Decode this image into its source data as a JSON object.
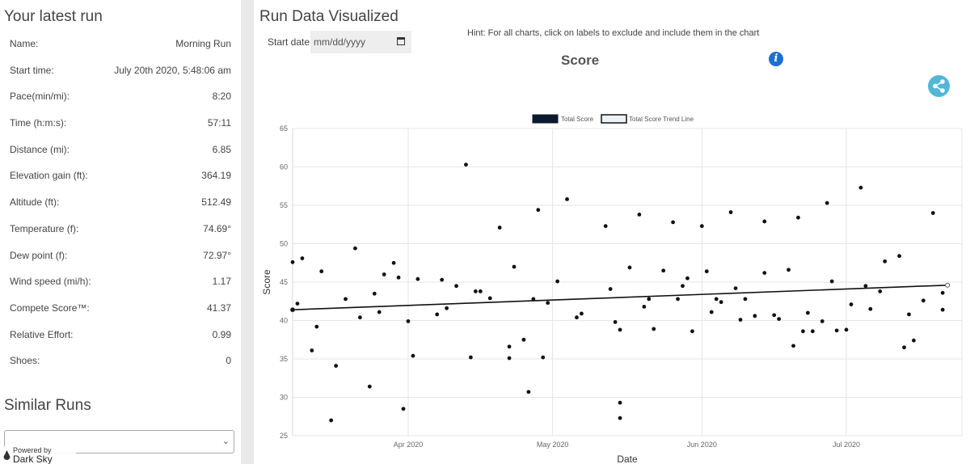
{
  "left": {
    "latest_title": "Your latest run",
    "rows": [
      {
        "label": "Name:",
        "value": "Morning Run"
      },
      {
        "label": "Start time:",
        "value": "July 20th 2020, 5:48:06 am"
      },
      {
        "label": "Pace(min/mi):",
        "value": "8:20"
      },
      {
        "label": "Time (h:m:s):",
        "value": "57:11"
      },
      {
        "label": "Distance (mi):",
        "value": "6.85"
      },
      {
        "label": "Elevation gain (ft):",
        "value": "364.19"
      },
      {
        "label": "Altitude (ft):",
        "value": "512.49"
      },
      {
        "label": "Temperature (f):",
        "value": "74.69°"
      },
      {
        "label": "Dew point (f):",
        "value": "72.97°"
      },
      {
        "label": "Wind speed (mi/h):",
        "value": "1.17"
      },
      {
        "label": "Compete Score™:",
        "value": "41.37"
      },
      {
        "label": "Relative Effort:",
        "value": "0.99"
      },
      {
        "label": "Shoes:",
        "value": "0"
      }
    ],
    "similar_title": "Similar Runs",
    "similar_select_value": "",
    "powered_by_line1": "Powered by",
    "powered_by_line2": "Dark Sky"
  },
  "right": {
    "title": "Run Data Visualized",
    "start_date_label": "Start date",
    "start_date_placeholder": "mm/dd/yyyy",
    "hint": "Hint: For all charts, click on labels to exclude and include them in the chart",
    "info_glyph": "i"
  },
  "icons": {
    "calendar": "calendar-icon",
    "info": "info-icon",
    "share": "share-icon",
    "chevron": "chevron-down-icon",
    "darksky": "darksky-logo-icon"
  },
  "colors": {
    "point": "#111111",
    "trend": "#111111",
    "info": "#1e6fd0",
    "share": "#52b7d6",
    "divider": "#e9e9e9"
  },
  "chart_data": {
    "type": "scatter",
    "title": "Score",
    "xlabel": "Date",
    "ylabel": "Score",
    "ylim": [
      25,
      65
    ],
    "yticks": [
      25,
      30,
      35,
      40,
      45,
      50,
      55,
      60,
      65
    ],
    "xlim": [
      "2020-03-08",
      "2020-07-25"
    ],
    "xticks": [
      {
        "date": "2020-04-01",
        "label": "Apr 2020"
      },
      {
        "date": "2020-05-01",
        "label": "May 2020"
      },
      {
        "date": "2020-06-01",
        "label": "Jun 2020"
      },
      {
        "date": "2020-07-01",
        "label": "Jul 2020"
      }
    ],
    "grid": true,
    "legend": {
      "position": "top",
      "entries": [
        "Total Score",
        "Total Score Trend Line"
      ]
    },
    "series": [
      {
        "name": "Total Score",
        "points": [
          [
            "2020-03-08",
            47.6
          ],
          [
            "2020-03-08",
            41.4
          ],
          [
            "2020-03-09",
            42.2
          ],
          [
            "2020-03-10",
            48.1
          ],
          [
            "2020-03-12",
            36.1
          ],
          [
            "2020-03-13",
            39.2
          ],
          [
            "2020-03-14",
            46.4
          ],
          [
            "2020-03-16",
            27.0
          ],
          [
            "2020-03-17",
            34.1
          ],
          [
            "2020-03-19",
            42.8
          ],
          [
            "2020-03-21",
            49.4
          ],
          [
            "2020-03-22",
            40.4
          ],
          [
            "2020-03-24",
            31.4
          ],
          [
            "2020-03-25",
            43.5
          ],
          [
            "2020-03-26",
            41.1
          ],
          [
            "2020-03-27",
            46.0
          ],
          [
            "2020-03-29",
            47.5
          ],
          [
            "2020-03-30",
            45.6
          ],
          [
            "2020-03-31",
            28.5
          ],
          [
            "2020-04-01",
            39.9
          ],
          [
            "2020-04-02",
            35.4
          ],
          [
            "2020-04-03",
            45.4
          ],
          [
            "2020-04-07",
            40.8
          ],
          [
            "2020-04-08",
            45.3
          ],
          [
            "2020-04-09",
            41.6
          ],
          [
            "2020-04-11",
            44.5
          ],
          [
            "2020-04-13",
            60.3
          ],
          [
            "2020-04-14",
            35.2
          ],
          [
            "2020-04-15",
            43.8
          ],
          [
            "2020-04-16",
            43.8
          ],
          [
            "2020-04-18",
            42.9
          ],
          [
            "2020-04-20",
            52.1
          ],
          [
            "2020-04-22",
            36.6
          ],
          [
            "2020-04-22",
            35.1
          ],
          [
            "2020-04-23",
            47.0
          ],
          [
            "2020-04-25",
            37.5
          ],
          [
            "2020-04-26",
            30.7
          ],
          [
            "2020-04-27",
            42.8
          ],
          [
            "2020-04-28",
            54.4
          ],
          [
            "2020-04-29",
            35.2
          ],
          [
            "2020-04-30",
            42.3
          ],
          [
            "2020-05-02",
            45.1
          ],
          [
            "2020-05-04",
            55.8
          ],
          [
            "2020-05-06",
            40.4
          ],
          [
            "2020-05-07",
            40.9
          ],
          [
            "2020-05-12",
            52.3
          ],
          [
            "2020-05-13",
            44.1
          ],
          [
            "2020-05-14",
            39.8
          ],
          [
            "2020-05-15",
            38.8
          ],
          [
            "2020-05-15",
            29.3
          ],
          [
            "2020-05-15",
            27.3
          ],
          [
            "2020-05-17",
            46.9
          ],
          [
            "2020-05-19",
            53.8
          ],
          [
            "2020-05-20",
            41.8
          ],
          [
            "2020-05-21",
            42.8
          ],
          [
            "2020-05-22",
            38.9
          ],
          [
            "2020-05-24",
            46.5
          ],
          [
            "2020-05-26",
            52.8
          ],
          [
            "2020-05-27",
            42.8
          ],
          [
            "2020-05-28",
            44.5
          ],
          [
            "2020-05-29",
            45.5
          ],
          [
            "2020-05-30",
            38.6
          ],
          [
            "2020-06-01",
            52.3
          ],
          [
            "2020-06-02",
            46.4
          ],
          [
            "2020-06-03",
            41.1
          ],
          [
            "2020-06-04",
            42.8
          ],
          [
            "2020-06-05",
            42.4
          ],
          [
            "2020-06-07",
            54.1
          ],
          [
            "2020-06-08",
            44.2
          ],
          [
            "2020-06-09",
            40.1
          ],
          [
            "2020-06-10",
            42.8
          ],
          [
            "2020-06-12",
            40.6
          ],
          [
            "2020-06-14",
            52.9
          ],
          [
            "2020-06-14",
            46.2
          ],
          [
            "2020-06-16",
            40.7
          ],
          [
            "2020-06-17",
            40.2
          ],
          [
            "2020-06-19",
            46.6
          ],
          [
            "2020-06-20",
            36.7
          ],
          [
            "2020-06-21",
            53.4
          ],
          [
            "2020-06-22",
            38.6
          ],
          [
            "2020-06-23",
            41.0
          ],
          [
            "2020-06-24",
            38.6
          ],
          [
            "2020-06-26",
            39.9
          ],
          [
            "2020-06-27",
            55.3
          ],
          [
            "2020-06-28",
            45.1
          ],
          [
            "2020-06-29",
            38.7
          ],
          [
            "2020-07-01",
            38.8
          ],
          [
            "2020-07-02",
            42.1
          ],
          [
            "2020-07-04",
            57.3
          ],
          [
            "2020-07-05",
            44.5
          ],
          [
            "2020-07-06",
            41.5
          ],
          [
            "2020-07-08",
            43.8
          ],
          [
            "2020-07-09",
            47.7
          ],
          [
            "2020-07-12",
            48.4
          ],
          [
            "2020-07-13",
            36.5
          ],
          [
            "2020-07-14",
            40.8
          ],
          [
            "2020-07-15",
            37.4
          ],
          [
            "2020-07-17",
            42.6
          ],
          [
            "2020-07-19",
            54.0
          ],
          [
            "2020-07-21",
            43.6
          ],
          [
            "2020-07-21",
            41.4
          ]
        ]
      },
      {
        "name": "Total Score Trend Line",
        "points": [
          [
            "2020-03-08",
            41.4
          ],
          [
            "2020-07-22",
            44.6
          ]
        ]
      }
    ]
  }
}
